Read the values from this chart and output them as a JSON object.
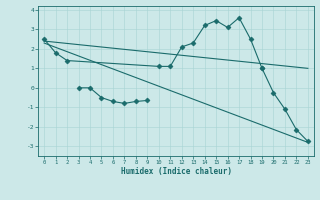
{
  "xlabel": "Humidex (Indice chaleur)",
  "background_color": "#cce8e8",
  "line_color": "#1a6b6b",
  "series": {
    "upper_curve": {
      "x": [
        0,
        1,
        2,
        10,
        11,
        12,
        13,
        14,
        15,
        16,
        17,
        18,
        19
      ],
      "y": [
        2.5,
        1.8,
        1.4,
        1.1,
        1.1,
        2.1,
        2.3,
        3.2,
        3.45,
        3.1,
        3.6,
        2.5,
        1.0
      ]
    },
    "lower_curve": {
      "x": [
        3,
        4,
        5,
        6,
        7,
        8,
        9
      ],
      "y": [
        0.0,
        0.0,
        -0.5,
        -0.7,
        -0.8,
        -0.7,
        -0.65
      ]
    },
    "diagonal_upper": {
      "x": [
        0,
        23
      ],
      "y": [
        2.4,
        1.0
      ]
    },
    "diagonal_lower": {
      "x": [
        0,
        23
      ],
      "y": [
        2.3,
        -2.8
      ]
    },
    "lower_ext": {
      "x": [
        19,
        20,
        21,
        22,
        23
      ],
      "y": [
        1.0,
        -0.25,
        -1.1,
        -2.15,
        -2.75
      ]
    }
  },
  "ylim": [
    -3.5,
    4.2
  ],
  "xlim": [
    -0.5,
    23.5
  ],
  "yticks": [
    -3,
    -2,
    -1,
    0,
    1,
    2,
    3,
    4
  ],
  "xticks": [
    0,
    1,
    2,
    3,
    4,
    5,
    6,
    7,
    8,
    9,
    10,
    11,
    12,
    13,
    14,
    15,
    16,
    17,
    18,
    19,
    20,
    21,
    22,
    23
  ],
  "figsize": [
    3.2,
    2.0
  ],
  "dpi": 100
}
